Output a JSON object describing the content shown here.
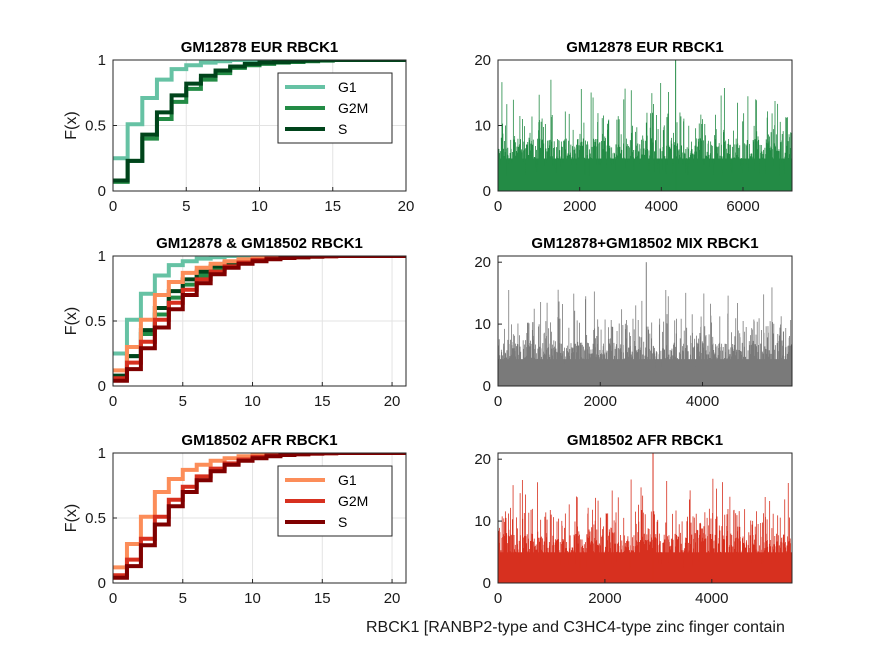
{
  "figure_label": "RBCK1 [RANBP2-type and C3HC4-type zinc finger contain",
  "colors": {
    "eur": {
      "G1": "#66c2a4",
      "G2M": "#238b45",
      "S": "#00441b"
    },
    "afr": {
      "G1": "#fc8d59",
      "G2M": "#d7301f",
      "S": "#7f0000"
    },
    "mix": "#7a7a7a"
  },
  "chart_data": [
    {
      "type": "line",
      "title": "GM12878 EUR RBCK1",
      "ylabel": "F(x)",
      "xlim": [
        0,
        20
      ],
      "ylim": [
        0,
        1
      ],
      "xticks": [
        0,
        5,
        10,
        15,
        20
      ],
      "yticks": [
        0,
        0.5,
        1
      ],
      "grid": true,
      "legend": "top-right",
      "series": [
        {
          "name": "G1",
          "x": [
            0,
            1,
            2,
            3,
            4,
            5,
            6,
            7,
            8,
            9,
            10,
            12,
            14,
            16,
            20
          ],
          "y": [
            0.25,
            0.51,
            0.71,
            0.85,
            0.93,
            0.96,
            0.98,
            0.99,
            1.0,
            1.0,
            1.0,
            1.0,
            1.0,
            1.0,
            1.0
          ]
        },
        {
          "name": "G2M",
          "x": [
            0,
            1,
            2,
            3,
            4,
            5,
            6,
            7,
            8,
            9,
            10,
            11,
            12,
            13,
            14,
            15,
            16,
            20
          ],
          "y": [
            0.07,
            0.23,
            0.4,
            0.55,
            0.68,
            0.78,
            0.85,
            0.9,
            0.94,
            0.96,
            0.97,
            0.98,
            0.985,
            0.99,
            0.995,
            1.0,
            1.0,
            1.0
          ]
        },
        {
          "name": "S",
          "x": [
            0,
            1,
            2,
            3,
            4,
            5,
            6,
            7,
            8,
            9,
            10,
            11,
            12,
            13,
            14,
            15,
            16,
            20
          ],
          "y": [
            0.08,
            0.23,
            0.43,
            0.6,
            0.73,
            0.82,
            0.88,
            0.92,
            0.95,
            0.97,
            0.98,
            0.985,
            0.99,
            0.995,
            0.998,
            1.0,
            1.0,
            1.0
          ]
        }
      ]
    },
    {
      "type": "bar",
      "title": "GM12878 EUR RBCK1",
      "xlim": [
        0,
        7200
      ],
      "ylim": [
        0,
        20
      ],
      "xticks": [
        0,
        2000,
        4000,
        6000
      ],
      "yticks": [
        0,
        10,
        20
      ],
      "n_cells": 7200,
      "typical_max": 8,
      "peak_value": 20,
      "peak_x": 4350,
      "color": "#238b45"
    },
    {
      "type": "line",
      "title": "GM12878 & GM18502 RBCK1",
      "ylabel": "F(x)",
      "xlim": [
        0,
        21
      ],
      "ylim": [
        0,
        1
      ],
      "xticks": [
        0,
        5,
        10,
        15,
        20
      ],
      "yticks": [
        0,
        0.5,
        1
      ],
      "grid": true,
      "series": [
        {
          "x": [
            0,
            1,
            2,
            3,
            4,
            5,
            6,
            7,
            8,
            9,
            10,
            12,
            14,
            16,
            18,
            21
          ],
          "y": [
            0.25,
            0.51,
            0.71,
            0.85,
            0.93,
            0.96,
            0.98,
            0.99,
            1.0,
            1.0,
            1.0,
            1.0,
            1.0,
            1.0,
            1.0,
            1.0
          ]
        },
        {
          "x": [
            0,
            1,
            2,
            3,
            4,
            5,
            6,
            7,
            8,
            9,
            10,
            11,
            12,
            13,
            14,
            15,
            16,
            21
          ],
          "y": [
            0.07,
            0.23,
            0.4,
            0.55,
            0.68,
            0.78,
            0.85,
            0.9,
            0.94,
            0.96,
            0.97,
            0.98,
            0.985,
            0.99,
            0.995,
            1.0,
            1.0,
            1.0
          ]
        },
        {
          "x": [
            0,
            1,
            2,
            3,
            4,
            5,
            6,
            7,
            8,
            9,
            10,
            11,
            12,
            13,
            14,
            15,
            16,
            21
          ],
          "y": [
            0.08,
            0.23,
            0.43,
            0.6,
            0.73,
            0.82,
            0.88,
            0.92,
            0.95,
            0.97,
            0.98,
            0.985,
            0.99,
            0.995,
            0.998,
            1.0,
            1.0,
            1.0
          ]
        },
        {
          "x": [
            0,
            1,
            2,
            3,
            4,
            5,
            6,
            7,
            8,
            9,
            10,
            11,
            12,
            13,
            14,
            15,
            16,
            18,
            21
          ],
          "y": [
            0.12,
            0.3,
            0.51,
            0.7,
            0.8,
            0.87,
            0.91,
            0.94,
            0.96,
            0.975,
            0.985,
            0.99,
            0.993,
            0.996,
            0.998,
            0.999,
            1.0,
            1.0,
            1.0
          ]
        },
        {
          "x": [
            0,
            1,
            2,
            3,
            4,
            5,
            6,
            7,
            8,
            9,
            10,
            11,
            12,
            13,
            14,
            15,
            16,
            18,
            21
          ],
          "y": [
            0.06,
            0.18,
            0.34,
            0.51,
            0.64,
            0.74,
            0.82,
            0.88,
            0.92,
            0.95,
            0.97,
            0.98,
            0.985,
            0.99,
            0.995,
            0.998,
            1.0,
            1.0,
            1.0
          ]
        },
        {
          "x": [
            0,
            1,
            2,
            3,
            4,
            5,
            6,
            7,
            8,
            9,
            10,
            11,
            12,
            13,
            14,
            15,
            16,
            18,
            21
          ],
          "y": [
            0.04,
            0.13,
            0.29,
            0.45,
            0.59,
            0.7,
            0.79,
            0.86,
            0.91,
            0.94,
            0.96,
            0.975,
            0.985,
            0.99,
            0.995,
            0.998,
            1.0,
            1.0,
            1.0
          ]
        }
      ]
    },
    {
      "type": "bar",
      "title": "GM12878+GM18502 MIX RBCK1",
      "xlim": [
        0,
        5750
      ],
      "ylim": [
        0,
        21
      ],
      "xticks": [
        0,
        2000,
        4000
      ],
      "yticks": [
        0,
        10,
        20
      ],
      "n_cells": 5750,
      "typical_max": 7,
      "peak_value": 20,
      "peak_x": 2900,
      "color": "#7a7a7a"
    },
    {
      "type": "line",
      "title": "GM18502 AFR RBCK1",
      "ylabel": "F(x)",
      "xlim": [
        0,
        21
      ],
      "ylim": [
        0,
        1
      ],
      "xticks": [
        0,
        5,
        10,
        15,
        20
      ],
      "yticks": [
        0,
        0.5,
        1
      ],
      "grid": true,
      "legend": "top-right",
      "series": [
        {
          "name": "G1",
          "x": [
            0,
            1,
            2,
            3,
            4,
            5,
            6,
            7,
            8,
            9,
            10,
            11,
            12,
            13,
            14,
            15,
            16,
            18,
            21
          ],
          "y": [
            0.12,
            0.3,
            0.51,
            0.7,
            0.8,
            0.87,
            0.91,
            0.94,
            0.96,
            0.975,
            0.985,
            0.99,
            0.993,
            0.996,
            0.998,
            0.999,
            1.0,
            1.0,
            1.0
          ]
        },
        {
          "name": "G2M",
          "x": [
            0,
            1,
            2,
            3,
            4,
            5,
            6,
            7,
            8,
            9,
            10,
            11,
            12,
            13,
            14,
            15,
            16,
            18,
            21
          ],
          "y": [
            0.06,
            0.18,
            0.34,
            0.51,
            0.64,
            0.74,
            0.82,
            0.88,
            0.92,
            0.95,
            0.97,
            0.98,
            0.985,
            0.99,
            0.995,
            0.998,
            1.0,
            1.0,
            1.0
          ]
        },
        {
          "name": "S",
          "x": [
            0,
            1,
            2,
            3,
            4,
            5,
            6,
            7,
            8,
            9,
            10,
            11,
            12,
            13,
            14,
            15,
            16,
            18,
            21
          ],
          "y": [
            0.04,
            0.13,
            0.29,
            0.45,
            0.59,
            0.7,
            0.79,
            0.86,
            0.91,
            0.94,
            0.96,
            0.975,
            0.985,
            0.99,
            0.995,
            0.998,
            1.0,
            1.0,
            1.0
          ]
        }
      ]
    },
    {
      "type": "bar",
      "title": "GM18502 AFR RBCK1",
      "xlim": [
        0,
        5500
      ],
      "ylim": [
        0,
        21
      ],
      "xticks": [
        0,
        2000,
        4000
      ],
      "yticks": [
        0,
        10,
        20
      ],
      "n_cells": 5500,
      "typical_max": 8,
      "peak_value": 21,
      "peak_x": 2900,
      "color": "#d7301f"
    }
  ]
}
